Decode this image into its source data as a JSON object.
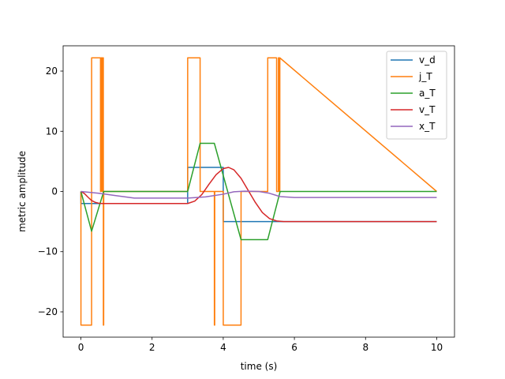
{
  "chart_data": {
    "type": "line",
    "title": "",
    "xlabel": "time (s)",
    "ylabel": "metric amplitude",
    "xlim": [
      -0.5,
      10.5
    ],
    "ylim": [
      -24.2,
      24.2
    ],
    "xticks": [
      0,
      2,
      4,
      6,
      8,
      10
    ],
    "yticks": [
      -20,
      -10,
      0,
      10,
      20
    ],
    "xtick_labels": [
      "0",
      "2",
      "4",
      "6",
      "8",
      "10"
    ],
    "ytick_labels": [
      "−20",
      "−10",
      "0",
      "10",
      "20"
    ],
    "grid": false,
    "legend_placement": "top-right",
    "series": [
      {
        "name": "v_d",
        "color": "#1f77b4",
        "x": [
          0,
          0.001,
          3.0,
          3.001,
          4.0,
          4.001,
          10.0
        ],
        "y": [
          0,
          -2,
          -2,
          4,
          4,
          -5,
          -5
        ]
      },
      {
        "name": "j_T",
        "color": "#ff7f0e",
        "x": [
          0,
          0.001,
          0.3,
          0.301,
          0.55,
          0.551,
          0.57,
          0.571,
          0.6,
          0.601,
          0.62,
          0.621,
          0.63,
          0.631,
          0.64,
          0.641,
          3.0,
          3.001,
          3.35,
          3.351,
          3.75,
          3.751,
          3.76,
          3.761,
          4.0,
          4.001,
          4.5,
          4.501,
          5.25,
          5.251,
          5.5,
          5.501,
          5.55,
          5.551,
          5.57,
          5.571,
          5.59,
          5.591,
          10.0
        ],
        "y": [
          0,
          -22.2,
          -22.2,
          22.2,
          22.2,
          0,
          0,
          22.2,
          22.2,
          0,
          0,
          22.2,
          22.2,
          -22.2,
          -22.2,
          0,
          0,
          22.2,
          22.2,
          0,
          0,
          -22.2,
          -22.2,
          0,
          0,
          -22.2,
          -22.2,
          0,
          0,
          22.2,
          22.2,
          0,
          0,
          22.2,
          22.2,
          0,
          0,
          22.2,
          0
        ]
      },
      {
        "name": "a_T",
        "color": "#2ca02c",
        "x": [
          0,
          0.3,
          0.64,
          3.0,
          3.35,
          3.75,
          4.5,
          5.25,
          5.6,
          10.0
        ],
        "y": [
          0,
          -6.6,
          0,
          0,
          8,
          8,
          -8,
          -8,
          0,
          0
        ]
      },
      {
        "name": "v_T",
        "color": "#d62728",
        "x": [
          0,
          0.1,
          0.2,
          0.3,
          0.4,
          0.5,
          0.6,
          0.7,
          3.0,
          3.2,
          3.4,
          3.6,
          3.8,
          4.0,
          4.15,
          4.3,
          4.5,
          4.7,
          4.9,
          5.1,
          5.3,
          5.5,
          5.7,
          6.0,
          10.0
        ],
        "y": [
          0,
          -0.35,
          -0.95,
          -1.5,
          -1.8,
          -1.95,
          -2.0,
          -2.0,
          -2.0,
          -1.6,
          -0.5,
          1.2,
          2.8,
          3.8,
          4.0,
          3.6,
          2.2,
          0.2,
          -1.8,
          -3.5,
          -4.5,
          -4.9,
          -5.0,
          -5.0,
          -5.0
        ]
      },
      {
        "name": "x_T",
        "color": "#9467bd",
        "x": [
          0,
          0.5,
          1.0,
          1.5,
          2.0,
          3.0,
          3.5,
          4.0,
          4.3,
          4.6,
          5.0,
          5.3,
          5.6,
          6.0,
          10.0
        ],
        "y": [
          0,
          -0.3,
          -0.7,
          -1.1,
          -1.1,
          -1.1,
          -0.9,
          -0.45,
          -0.05,
          0.05,
          0.0,
          -0.3,
          -0.85,
          -1.0,
          -1.0
        ]
      }
    ]
  }
}
